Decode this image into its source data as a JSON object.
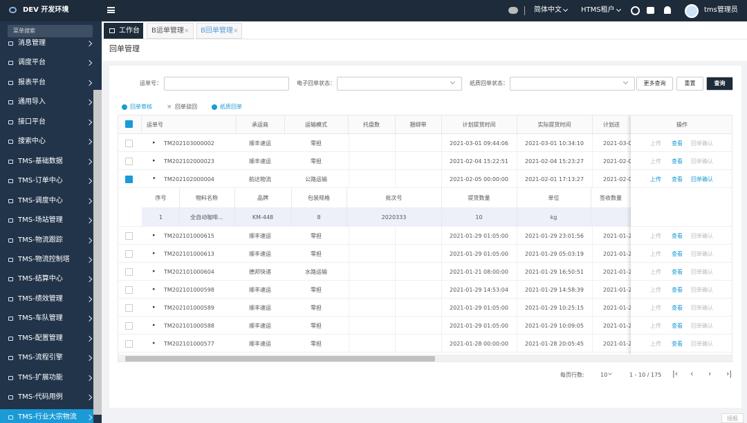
{
  "header": {
    "logo": "DEV 开发环境",
    "language": "简体中文",
    "tenant": "HTMS租户",
    "user": "tms管理员"
  },
  "sidebar": {
    "search": "菜单搜索",
    "items": [
      "消息管理",
      "调度平台",
      "报表平台",
      "通用导入",
      "接口平台",
      "搜索中心",
      "TMS-基础数据",
      "TMS-订单中心",
      "TMS-调度中心",
      "TMS-场站管理",
      "TMS-物流跟踪",
      "TMS-物流控制塔",
      "TMS-结算中心",
      "TMS-绩效管理",
      "TMS-车队管理",
      "TMS-配置管理",
      "TMS-流程引擎",
      "TMS-扩展功能",
      "TMS-代码用例",
      "TMS-行业大宗物流"
    ]
  },
  "tabs": [
    "工作台",
    "B运单管理",
    "B回单管理"
  ],
  "page_title": "回单管理",
  "filters": {
    "labels": [
      "运单号：",
      "电子回单状态：",
      "纸质回单状态："
    ],
    "buttons": [
      "更多查询",
      "重置",
      "查询"
    ]
  },
  "toolbar": [
    "回单审核",
    "回单驳回",
    "纸质回单"
  ],
  "table": {
    "columns": [
      "运单号",
      "承运商",
      "运输模式",
      "托盘数",
      "捆绑带",
      "计划提货时间",
      "实际提货时间",
      "计划送",
      "操作"
    ],
    "rows": [
      [
        "TM202103000002",
        "顺丰速运",
        "零担",
        "2021-03-01 09:44:06",
        "2021-03-01 10:34:10",
        "2021-03-0"
      ],
      [
        "TM202102000023",
        "顺丰速运",
        "零担",
        "2021-02-04 15:22:51",
        "2021-02-04 15:23:27",
        "2021-02-0"
      ],
      [
        "TM202102000004",
        "韵达物流",
        "公路运输",
        "2021-02-05 00:00:00",
        "2021-02-01 17:13:27",
        "2021-02-0"
      ],
      [
        "TM202101000615",
        "顺丰速运",
        "零担",
        "2021-01-29 01:05:00",
        "2021-01-29 23:01:56",
        "2021-01-2"
      ],
      [
        "TM202101000613",
        "顺丰速运",
        "零担",
        "2021-01-29 01:05:00",
        "2021-01-29 05:03:19",
        "2021-01-2"
      ],
      [
        "TM202101000604",
        "德邦快递",
        "水路运输",
        "2021-01-21 08:00:00",
        "2021-01-29 16:50:51",
        "2021-01-2"
      ],
      [
        "TM202101000598",
        "顺丰速运",
        "零担",
        "2021-01-29 14:53:04",
        "2021-01-29 14:58:39",
        "2021-01-2"
      ],
      [
        "TM202101000589",
        "顺丰速运",
        "零担",
        "2021-01-29 01:05:00",
        "2021-01-29 10:25:15",
        "2021-01-2"
      ],
      [
        "TM202101000588",
        "顺丰速运",
        "零担",
        "2021-01-29 01:05:00",
        "2021-01-29 10:09:05",
        "2021-01-2"
      ],
      [
        "TM202101000577",
        "顺丰速运",
        "零担",
        "2021-01-28 00:00:00",
        "2021-01-28 20:05:45",
        "2021-01-2"
      ]
    ],
    "actions": [
      "上传",
      "查看",
      "回单确认"
    ],
    "detail": {
      "columns": [
        "序号",
        "物料名称",
        "品牌",
        "包装规格",
        "批次号",
        "提货数量",
        "单位",
        "签收数量"
      ],
      "row": [
        "1",
        "全自动咖啡...",
        "KM-448",
        "8",
        "2020333",
        "10",
        "kg"
      ]
    }
  },
  "pagination": {
    "rows_per_page_label": "每页行数:",
    "rows_per_page": "10",
    "range": "1 - 10 / 175"
  },
  "float_button": "插报"
}
